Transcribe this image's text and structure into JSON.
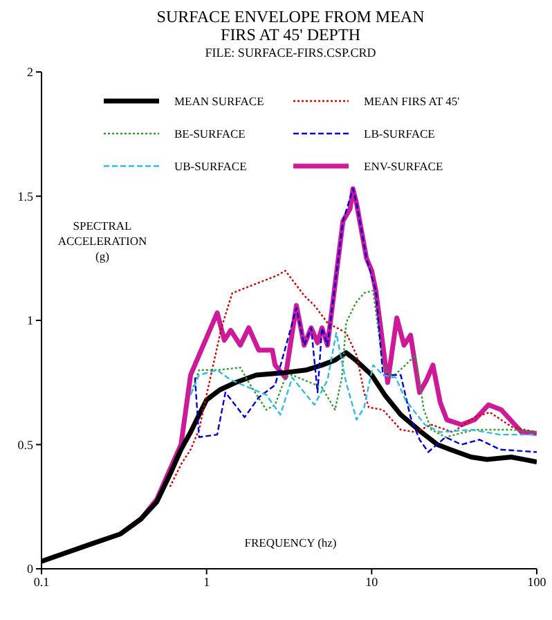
{
  "chart_data": {
    "type": "line",
    "title": "SURFACE ENVELOPE FROM MEAN FIRS AT 45' DEPTH",
    "subtitle": "FILE: SURFACE-FIRS.CSP.CRD",
    "xlabel": "FREQUENCY (hz)",
    "ylabel": "SPECTRAL ACCELERATION (g)",
    "log": "x",
    "xlim": [
      0.1,
      100
    ],
    "xticks": [
      0.1,
      1,
      10,
      100
    ],
    "ylim": [
      0,
      2
    ],
    "yticks": [
      0,
      0.5,
      1,
      1.5,
      2
    ],
    "legend": "top",
    "series": [
      {
        "name": "MEAN SURFACE",
        "color": "#000000",
        "line_style": "solid",
        "x": [
          0.1,
          0.2,
          0.3,
          0.4,
          0.5,
          0.6,
          0.7,
          0.8,
          0.9,
          1,
          1.2,
          1.5,
          2,
          3,
          4,
          5,
          6,
          7,
          8,
          10,
          12,
          15,
          20,
          25,
          30,
          40,
          50,
          70,
          100
        ],
        "values": [
          0.03,
          0.1,
          0.14,
          0.2,
          0.27,
          0.38,
          0.48,
          0.55,
          0.62,
          0.68,
          0.72,
          0.75,
          0.78,
          0.79,
          0.8,
          0.82,
          0.84,
          0.87,
          0.84,
          0.78,
          0.7,
          0.62,
          0.55,
          0.5,
          0.48,
          0.45,
          0.44,
          0.45,
          0.43
        ]
      },
      {
        "name": "MEAN FIRS AT 45'",
        "color": "#cc0000",
        "line_style": "dotted",
        "x": [
          0.6,
          0.7,
          0.8,
          0.9,
          1,
          1.23,
          1.43,
          2.66,
          3.0,
          3.9,
          4.5,
          5.4,
          7.0,
          8.1,
          9.0,
          9.6,
          11.7,
          15,
          18.4,
          23,
          31,
          42,
          52,
          71,
          100
        ],
        "values": [
          0.33,
          0.42,
          0.48,
          0.56,
          0.7,
          0.97,
          1.11,
          1.18,
          1.2,
          1.1,
          1.06,
          0.99,
          0.95,
          0.86,
          0.71,
          0.65,
          0.64,
          0.56,
          0.55,
          0.58,
          0.55,
          0.61,
          0.63,
          0.57,
          0.55
        ]
      },
      {
        "name": "BE-SURFACE",
        "color": "#339933",
        "line_style": "dotted",
        "x": [
          0.8,
          0.9,
          1.16,
          1.6,
          1.8,
          2.3,
          2.6,
          3.0,
          3.3,
          3.9,
          5.0,
          6.0,
          6.6,
          7.0,
          8.0,
          9.0,
          10.2,
          11.7,
          13.3,
          16,
          18.4,
          20.7,
          23,
          28,
          42,
          70,
          100
        ],
        "values": [
          0.7,
          0.8,
          0.8,
          0.81,
          0.75,
          0.64,
          0.66,
          0.77,
          0.78,
          0.76,
          0.73,
          0.64,
          0.77,
          0.99,
          1.07,
          1.11,
          1.12,
          0.82,
          0.77,
          0.82,
          0.86,
          0.64,
          0.56,
          0.53,
          0.56,
          0.56,
          0.55
        ]
      },
      {
        "name": "LB-SURFACE",
        "color": "#0000cc",
        "line_style": "dashed",
        "x": [
          0.85,
          0.9,
          1.16,
          1.3,
          1.7,
          2.07,
          2.6,
          3.5,
          3.9,
          4.3,
          4.7,
          5.0,
          5.4,
          6.7,
          7.7,
          8.1,
          9.3,
          10.6,
          11.7,
          15,
          17.2,
          19.5,
          22,
          28,
          35,
          45,
          60,
          100
        ],
        "values": [
          0.77,
          0.53,
          0.54,
          0.71,
          0.61,
          0.69,
          0.74,
          1.05,
          0.9,
          0.97,
          0.71,
          0.97,
          0.9,
          1.4,
          1.53,
          1.47,
          1.25,
          1.12,
          0.78,
          0.78,
          0.61,
          0.52,
          0.47,
          0.53,
          0.5,
          0.52,
          0.48,
          0.47
        ]
      },
      {
        "name": "UB-SURFACE",
        "color": "#33bbdd",
        "line_style": "dashed",
        "x": [
          0.8,
          0.9,
          1.16,
          1.4,
          1.8,
          2.3,
          2.6,
          2.8,
          3.3,
          3.9,
          4.5,
          5.4,
          6.1,
          7.0,
          8.1,
          9.0,
          10.2,
          11.7,
          14,
          16,
          21,
          26,
          40,
          60,
          100
        ],
        "values": [
          0.7,
          0.78,
          0.8,
          0.76,
          0.73,
          0.7,
          0.65,
          0.62,
          0.77,
          0.71,
          0.66,
          0.76,
          0.95,
          0.75,
          0.6,
          0.65,
          0.82,
          0.78,
          0.77,
          0.68,
          0.58,
          0.55,
          0.56,
          0.54,
          0.54
        ]
      },
      {
        "name": "ENV-SURFACE",
        "color": "#cc1a99",
        "line_style": "solid",
        "x": [
          0.3,
          0.4,
          0.5,
          0.6,
          0.7,
          0.8,
          0.9,
          1.16,
          1.28,
          1.4,
          1.6,
          1.8,
          2.07,
          2.5,
          2.6,
          3.0,
          3.5,
          3.9,
          4.3,
          4.7,
          5.0,
          5.4,
          6.7,
          7.4,
          7.7,
          8.1,
          9.3,
          10,
          10.6,
          12.5,
          14.2,
          15.7,
          17.2,
          19.5,
          21.5,
          23.5,
          26,
          28.5,
          35,
          42,
          51,
          61,
          81,
          100
        ],
        "values": [
          0.14,
          0.2,
          0.28,
          0.4,
          0.5,
          0.78,
          0.86,
          1.03,
          0.92,
          0.96,
          0.9,
          0.97,
          0.88,
          0.88,
          0.82,
          0.77,
          1.06,
          0.9,
          0.97,
          0.91,
          0.97,
          0.9,
          1.4,
          1.45,
          1.53,
          1.47,
          1.25,
          1.2,
          1.12,
          0.75,
          1.01,
          0.9,
          0.94,
          0.71,
          0.76,
          0.82,
          0.67,
          0.6,
          0.58,
          0.6,
          0.66,
          0.64,
          0.55,
          0.545
        ]
      }
    ]
  }
}
